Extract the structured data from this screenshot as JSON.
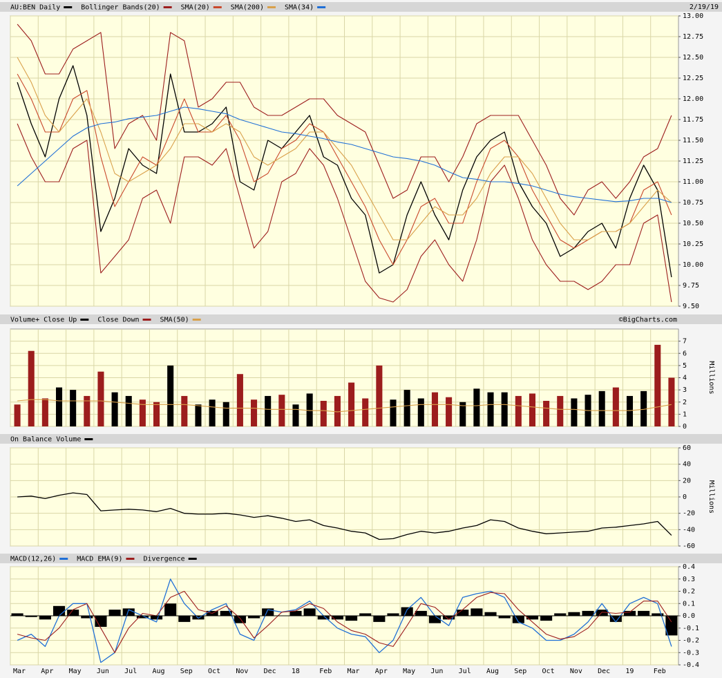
{
  "chart_data": [
    {
      "type": "line",
      "date": "2/19/19",
      "ylim": [
        9.5,
        13.0
      ],
      "yticks": [
        {
          "value": 9.5,
          "label": "9.50"
        },
        9.75,
        {
          "value": 10.0,
          "label": "10.00"
        },
        10.25,
        {
          "value": 10.5,
          "label": "10.50"
        },
        10.75,
        {
          "value": 11.0,
          "label": "11.00"
        },
        11.25,
        {
          "value": 11.5,
          "label": "11.50"
        },
        11.75,
        {
          "value": 12.0,
          "label": "12.00"
        },
        12.25,
        {
          "value": 12.5,
          "label": "12.50"
        },
        12.75,
        {
          "value": 13.0,
          "label": "13.00"
        }
      ],
      "grid": true,
      "series": [
        {
          "name": "AU:BEN Daily",
          "color": "#000000",
          "style": "line",
          "values": [
            12.2,
            11.7,
            11.3,
            12.0,
            12.4,
            11.8,
            10.4,
            10.8,
            11.4,
            11.2,
            11.1,
            12.3,
            11.6,
            11.6,
            11.7,
            11.9,
            11.0,
            10.9,
            11.5,
            11.4,
            11.6,
            11.8,
            11.3,
            11.2,
            10.8,
            10.6,
            9.9,
            10.0,
            10.6,
            11.0,
            10.6,
            10.3,
            10.9,
            11.3,
            11.5,
            11.6,
            11.0,
            10.7,
            10.5,
            10.1,
            10.2,
            10.4,
            10.5,
            10.2,
            10.8,
            11.2,
            10.9,
            9.85
          ]
        },
        {
          "name": "Bollinger Bands(20)",
          "color": "#9c1d1d",
          "style": "bands",
          "upper": [
            12.9,
            12.7,
            12.3,
            12.3,
            12.6,
            12.7,
            12.8,
            11.4,
            11.7,
            11.8,
            11.5,
            12.8,
            12.7,
            11.9,
            12.0,
            12.2,
            12.2,
            11.9,
            11.8,
            11.8,
            11.9,
            12.0,
            12.0,
            11.8,
            11.7,
            11.6,
            11.2,
            10.8,
            10.9,
            11.3,
            11.3,
            11.0,
            11.3,
            11.7,
            11.8,
            11.8,
            11.8,
            11.5,
            11.2,
            10.8,
            10.6,
            10.9,
            11.0,
            10.8,
            11.0,
            11.3,
            11.4,
            11.8
          ],
          "lower": [
            11.7,
            11.3,
            11.0,
            11.0,
            11.4,
            11.5,
            9.9,
            10.1,
            10.3,
            10.8,
            10.9,
            10.5,
            11.3,
            11.3,
            11.2,
            11.4,
            10.8,
            10.2,
            10.4,
            11.0,
            11.1,
            11.4,
            11.2,
            10.8,
            10.3,
            9.8,
            9.6,
            9.55,
            9.7,
            10.1,
            10.3,
            10.0,
            9.8,
            10.3,
            11.0,
            11.2,
            10.8,
            10.3,
            10.0,
            9.8,
            9.8,
            9.7,
            9.8,
            10.0,
            10.0,
            10.5,
            10.6,
            9.55
          ]
        },
        {
          "name": "SMA(20)",
          "color": "#c9482c",
          "style": "line",
          "values": [
            12.3,
            12.0,
            11.6,
            11.6,
            12.0,
            12.1,
            11.3,
            10.7,
            11.0,
            11.3,
            11.2,
            11.6,
            12.0,
            11.6,
            11.6,
            11.8,
            11.5,
            11.0,
            11.1,
            11.4,
            11.5,
            11.7,
            11.6,
            11.3,
            11.0,
            10.7,
            10.3,
            10.0,
            10.3,
            10.7,
            10.8,
            10.5,
            10.5,
            11.0,
            11.4,
            11.5,
            11.3,
            10.9,
            10.6,
            10.3,
            10.2,
            10.3,
            10.4,
            10.4,
            10.5,
            10.9,
            11.0,
            10.6
          ]
        },
        {
          "name": "SMA(200)",
          "color": "#d9a04a",
          "style": "line",
          "values": [
            12.5,
            12.2,
            11.8,
            11.6,
            11.8,
            12.0,
            11.6,
            11.1,
            11.0,
            11.1,
            11.2,
            11.4,
            11.7,
            11.7,
            11.6,
            11.7,
            11.6,
            11.3,
            11.2,
            11.3,
            11.4,
            11.6,
            11.6,
            11.4,
            11.2,
            10.9,
            10.6,
            10.3,
            10.3,
            10.5,
            10.7,
            10.6,
            10.6,
            10.8,
            11.1,
            11.3,
            11.3,
            11.1,
            10.8,
            10.5,
            10.3,
            10.3,
            10.4,
            10.4,
            10.5,
            10.7,
            10.9,
            10.75
          ]
        },
        {
          "name": "SMA(34)",
          "color": "#1f6fd6",
          "style": "line",
          "values": [
            10.95,
            11.1,
            11.25,
            11.4,
            11.55,
            11.65,
            11.7,
            11.72,
            11.76,
            11.78,
            11.8,
            11.85,
            11.9,
            11.88,
            11.85,
            11.82,
            11.75,
            11.7,
            11.65,
            11.6,
            11.58,
            11.55,
            11.52,
            11.48,
            11.45,
            11.4,
            11.35,
            11.3,
            11.28,
            11.25,
            11.2,
            11.12,
            11.05,
            11.03,
            11.0,
            11.0,
            10.98,
            10.95,
            10.9,
            10.85,
            10.82,
            10.8,
            10.78,
            10.76,
            10.77,
            10.8,
            10.8,
            10.75
          ]
        }
      ]
    },
    {
      "type": "bar",
      "source": "©BigCharts.com",
      "y_label": "Millions",
      "ylim": [
        0,
        8
      ],
      "yticks": [
        0,
        1,
        2,
        3,
        4,
        5,
        6,
        7
      ],
      "grid": true,
      "series": [
        {
          "name": "Volume+ Close Up",
          "color": "#000000",
          "style": "bar",
          "values": [
            null,
            null,
            null,
            3.2,
            3.0,
            null,
            null,
            2.8,
            2.5,
            null,
            null,
            5.0,
            null,
            1.8,
            2.2,
            2.0,
            null,
            null,
            2.5,
            null,
            1.8,
            2.7,
            null,
            null,
            null,
            null,
            null,
            2.2,
            3.0,
            2.3,
            null,
            null,
            2.0,
            3.1,
            2.8,
            2.8,
            null,
            null,
            null,
            null,
            2.3,
            2.6,
            2.9,
            null,
            2.5,
            2.9,
            null,
            null
          ]
        },
        {
          "name": "Close Down",
          "color": "#9c1d1d",
          "style": "bar",
          "values": [
            1.8,
            6.2,
            2.3,
            null,
            null,
            2.5,
            4.5,
            null,
            null,
            2.2,
            2.0,
            null,
            2.5,
            null,
            null,
            null,
            4.3,
            2.2,
            null,
            2.6,
            null,
            null,
            2.1,
            2.5,
            3.6,
            2.3,
            5.0,
            null,
            null,
            null,
            2.8,
            2.4,
            null,
            null,
            null,
            null,
            2.5,
            2.7,
            2.1,
            2.5,
            null,
            null,
            null,
            3.2,
            null,
            null,
            6.7,
            4.0
          ]
        },
        {
          "name": "SMA(50)",
          "color": "#d9a04a",
          "style": "line",
          "values": [
            2.1,
            2.2,
            2.2,
            2.1,
            2.1,
            2.1,
            2.1,
            2.0,
            1.9,
            1.8,
            1.8,
            1.8,
            1.8,
            1.7,
            1.6,
            1.5,
            1.5,
            1.5,
            1.4,
            1.4,
            1.4,
            1.3,
            1.3,
            1.2,
            1.3,
            1.4,
            1.5,
            1.6,
            1.7,
            1.8,
            1.8,
            1.8,
            1.7,
            1.7,
            1.8,
            1.8,
            1.7,
            1.6,
            1.5,
            1.4,
            1.4,
            1.3,
            1.3,
            1.3,
            1.3,
            1.4,
            1.6,
            1.8
          ]
        }
      ]
    },
    {
      "type": "line",
      "y_label": "Millions",
      "ylim": [
        -60,
        60
      ],
      "yticks": [
        -60,
        -40,
        -20,
        0,
        20,
        40,
        60
      ],
      "grid": true,
      "series": [
        {
          "name": "On Balance Volume",
          "color": "#000000",
          "style": "line",
          "values": [
            0,
            1,
            -2,
            2,
            5,
            3,
            -17,
            -16,
            -15,
            -16,
            -18,
            -14,
            -20,
            -21,
            -21,
            -20,
            -22,
            -25,
            -23,
            -26,
            -30,
            -28,
            -35,
            -38,
            -42,
            -44,
            -52,
            -51,
            -46,
            -42,
            -44,
            -42,
            -38,
            -35,
            -28,
            -30,
            -38,
            -42,
            -45,
            -44,
            -43,
            -42,
            -38,
            -37,
            -35,
            -33,
            -30,
            -47
          ]
        }
      ]
    },
    {
      "type": "line",
      "ylim": [
        -0.4,
        0.4
      ],
      "yticks": [
        -0.4,
        -0.3,
        -0.2,
        -0.1,
        {
          "value": 0,
          "label": "0.0"
        },
        0.1,
        0.2,
        0.3,
        0.4
      ],
      "grid": true,
      "categories": [
        "Mar",
        null,
        "Apr",
        null,
        "May",
        null,
        "Jun",
        null,
        "Jul",
        null,
        "Aug",
        null,
        "Sep",
        null,
        "Oct",
        null,
        "Nov",
        null,
        "Dec",
        null,
        "18",
        null,
        "Feb",
        null,
        "Mar",
        null,
        "Apr",
        null,
        "May",
        null,
        "Jun",
        null,
        "Jul",
        null,
        "Aug",
        null,
        "Sep",
        null,
        "Oct",
        null,
        "Nov",
        null,
        "Dec",
        null,
        "19",
        null,
        "Feb",
        null
      ],
      "series": [
        {
          "name": "MACD(12,26)",
          "color": "#1f6fd6",
          "style": "line",
          "values": [
            -0.2,
            -0.15,
            -0.25,
            0.0,
            0.1,
            0.1,
            -0.38,
            -0.3,
            0.05,
            0.0,
            -0.05,
            0.3,
            0.1,
            -0.02,
            0.05,
            0.1,
            -0.15,
            -0.2,
            0.05,
            0.03,
            0.05,
            0.12,
            0.0,
            -0.1,
            -0.15,
            -0.17,
            -0.3,
            -0.2,
            0.05,
            0.15,
            0.0,
            -0.08,
            0.15,
            0.18,
            0.2,
            0.15,
            -0.05,
            -0.1,
            -0.2,
            -0.2,
            -0.15,
            -0.05,
            0.1,
            -0.05,
            0.1,
            0.15,
            0.1,
            -0.25
          ]
        },
        {
          "name": "MACD EMA(9)",
          "color": "#9c1d1d",
          "style": "line",
          "values": [
            -0.15,
            -0.18,
            -0.2,
            -0.1,
            0.05,
            0.1,
            -0.1,
            -0.3,
            -0.1,
            0.02,
            0.0,
            0.15,
            0.2,
            0.05,
            0.02,
            0.08,
            -0.02,
            -0.18,
            -0.08,
            0.03,
            0.04,
            0.1,
            0.06,
            -0.05,
            -0.12,
            -0.15,
            -0.22,
            -0.25,
            -0.08,
            0.1,
            0.07,
            -0.03,
            0.05,
            0.15,
            0.19,
            0.18,
            0.05,
            -0.05,
            -0.15,
            -0.19,
            -0.17,
            -0.1,
            0.03,
            0.02,
            0.03,
            0.12,
            0.12,
            -0.05
          ]
        },
        {
          "name": "Divergence",
          "color": "#000000",
          "style": "bar",
          "values": [
            0.02,
            -0.01,
            -0.03,
            0.08,
            0.05,
            -0.02,
            -0.09,
            0.05,
            0.06,
            -0.02,
            -0.03,
            0.1,
            -0.05,
            -0.03,
            0.04,
            0.04,
            -0.06,
            -0.02,
            0.06,
            0.0,
            0.04,
            0.06,
            -0.03,
            -0.03,
            -0.04,
            0.02,
            -0.05,
            0.02,
            0.07,
            0.04,
            -0.06,
            -0.03,
            0.05,
            0.06,
            0.03,
            -0.02,
            -0.06,
            -0.03,
            -0.04,
            0.02,
            0.03,
            0.04,
            0.05,
            -0.05,
            0.04,
            0.04,
            0.02,
            -0.16
          ]
        }
      ]
    }
  ]
}
